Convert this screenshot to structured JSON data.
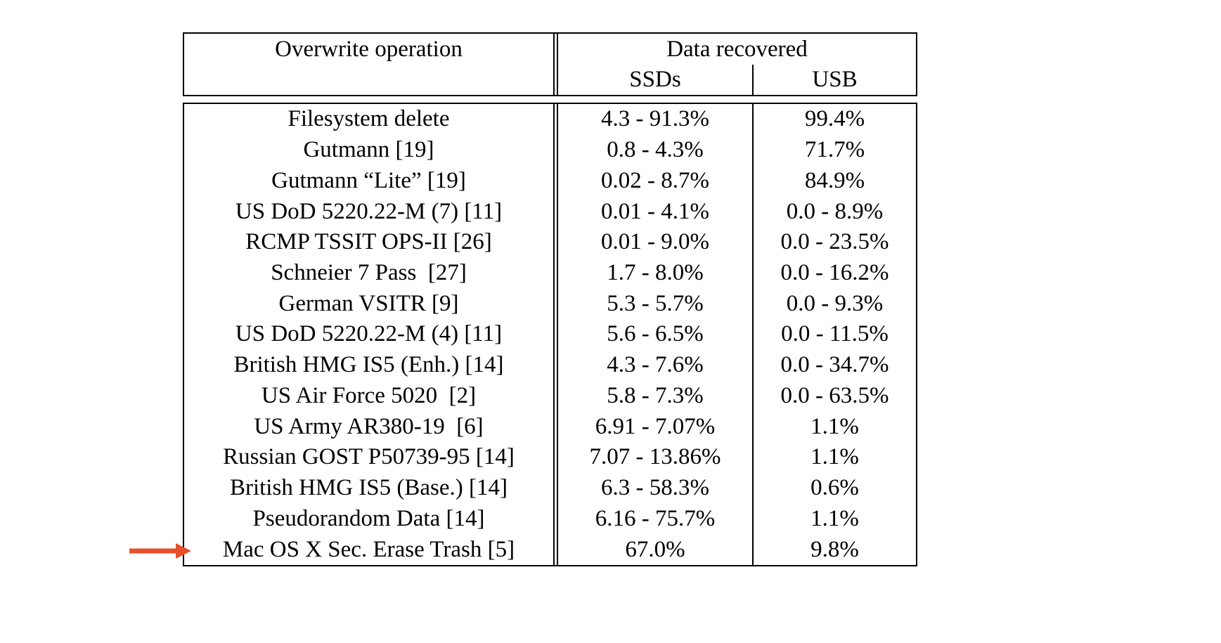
{
  "table": {
    "header": {
      "col_operation": "Overwrite operation",
      "col_data_recovered": "Data recovered",
      "sub_ssd": "SSDs",
      "sub_usb": "USB"
    },
    "rows": [
      {
        "operation": "Filesystem delete",
        "ssd": "4.3 - 91.3%",
        "usb": "99.4%"
      },
      {
        "operation": "Gutmann [19]",
        "ssd": "0.8 - 4.3%",
        "usb": "71.7%"
      },
      {
        "operation": "Gutmann “Lite” [19]",
        "ssd": "0.02 - 8.7%",
        "usb": "84.9%"
      },
      {
        "operation": "US DoD 5220.22-M (7) [11]",
        "ssd": "0.01 - 4.1%",
        "usb": "0.0 - 8.9%"
      },
      {
        "operation": "RCMP TSSIT OPS-II [26]",
        "ssd": "0.01 - 9.0%",
        "usb": "0.0 - 23.5%"
      },
      {
        "operation": "Schneier 7 Pass  [27]",
        "ssd": "1.7 - 8.0%",
        "usb": "0.0 - 16.2%"
      },
      {
        "operation": "German VSITR [9]",
        "ssd": "5.3 - 5.7%",
        "usb": "0.0 - 9.3%"
      },
      {
        "operation": "US DoD 5220.22-M (4) [11]",
        "ssd": "5.6 - 6.5%",
        "usb": "0.0 - 11.5%"
      },
      {
        "operation": "British HMG IS5 (Enh.) [14]",
        "ssd": "4.3 - 7.6%",
        "usb": "0.0 - 34.7%"
      },
      {
        "operation": "US Air Force 5020  [2]",
        "ssd": "5.8 - 7.3%",
        "usb": "0.0 - 63.5%"
      },
      {
        "operation": "US Army AR380-19  [6]",
        "ssd": "6.91 - 7.07%",
        "usb": "1.1%"
      },
      {
        "operation": "Russian GOST P50739-95 [14]",
        "ssd": "7.07 - 13.86%",
        "usb": "1.1%"
      },
      {
        "operation": "British HMG IS5 (Base.) [14]",
        "ssd": "6.3 - 58.3%",
        "usb": "0.6%"
      },
      {
        "operation": "Pseudorandom Data [14]",
        "ssd": "6.16 - 75.7%",
        "usb": "1.1%"
      },
      {
        "operation": "Mac OS X Sec. Erase Trash [5]",
        "ssd": "67.0%",
        "usb": "9.8%"
      }
    ],
    "highlight": {
      "arrow_color": "#e8502b",
      "arrow_target_row": "Mac OS X Sec. Erase Trash [5]"
    }
  },
  "colors": {
    "background": "#ffffff",
    "text": "#000000",
    "border": "#000000"
  }
}
